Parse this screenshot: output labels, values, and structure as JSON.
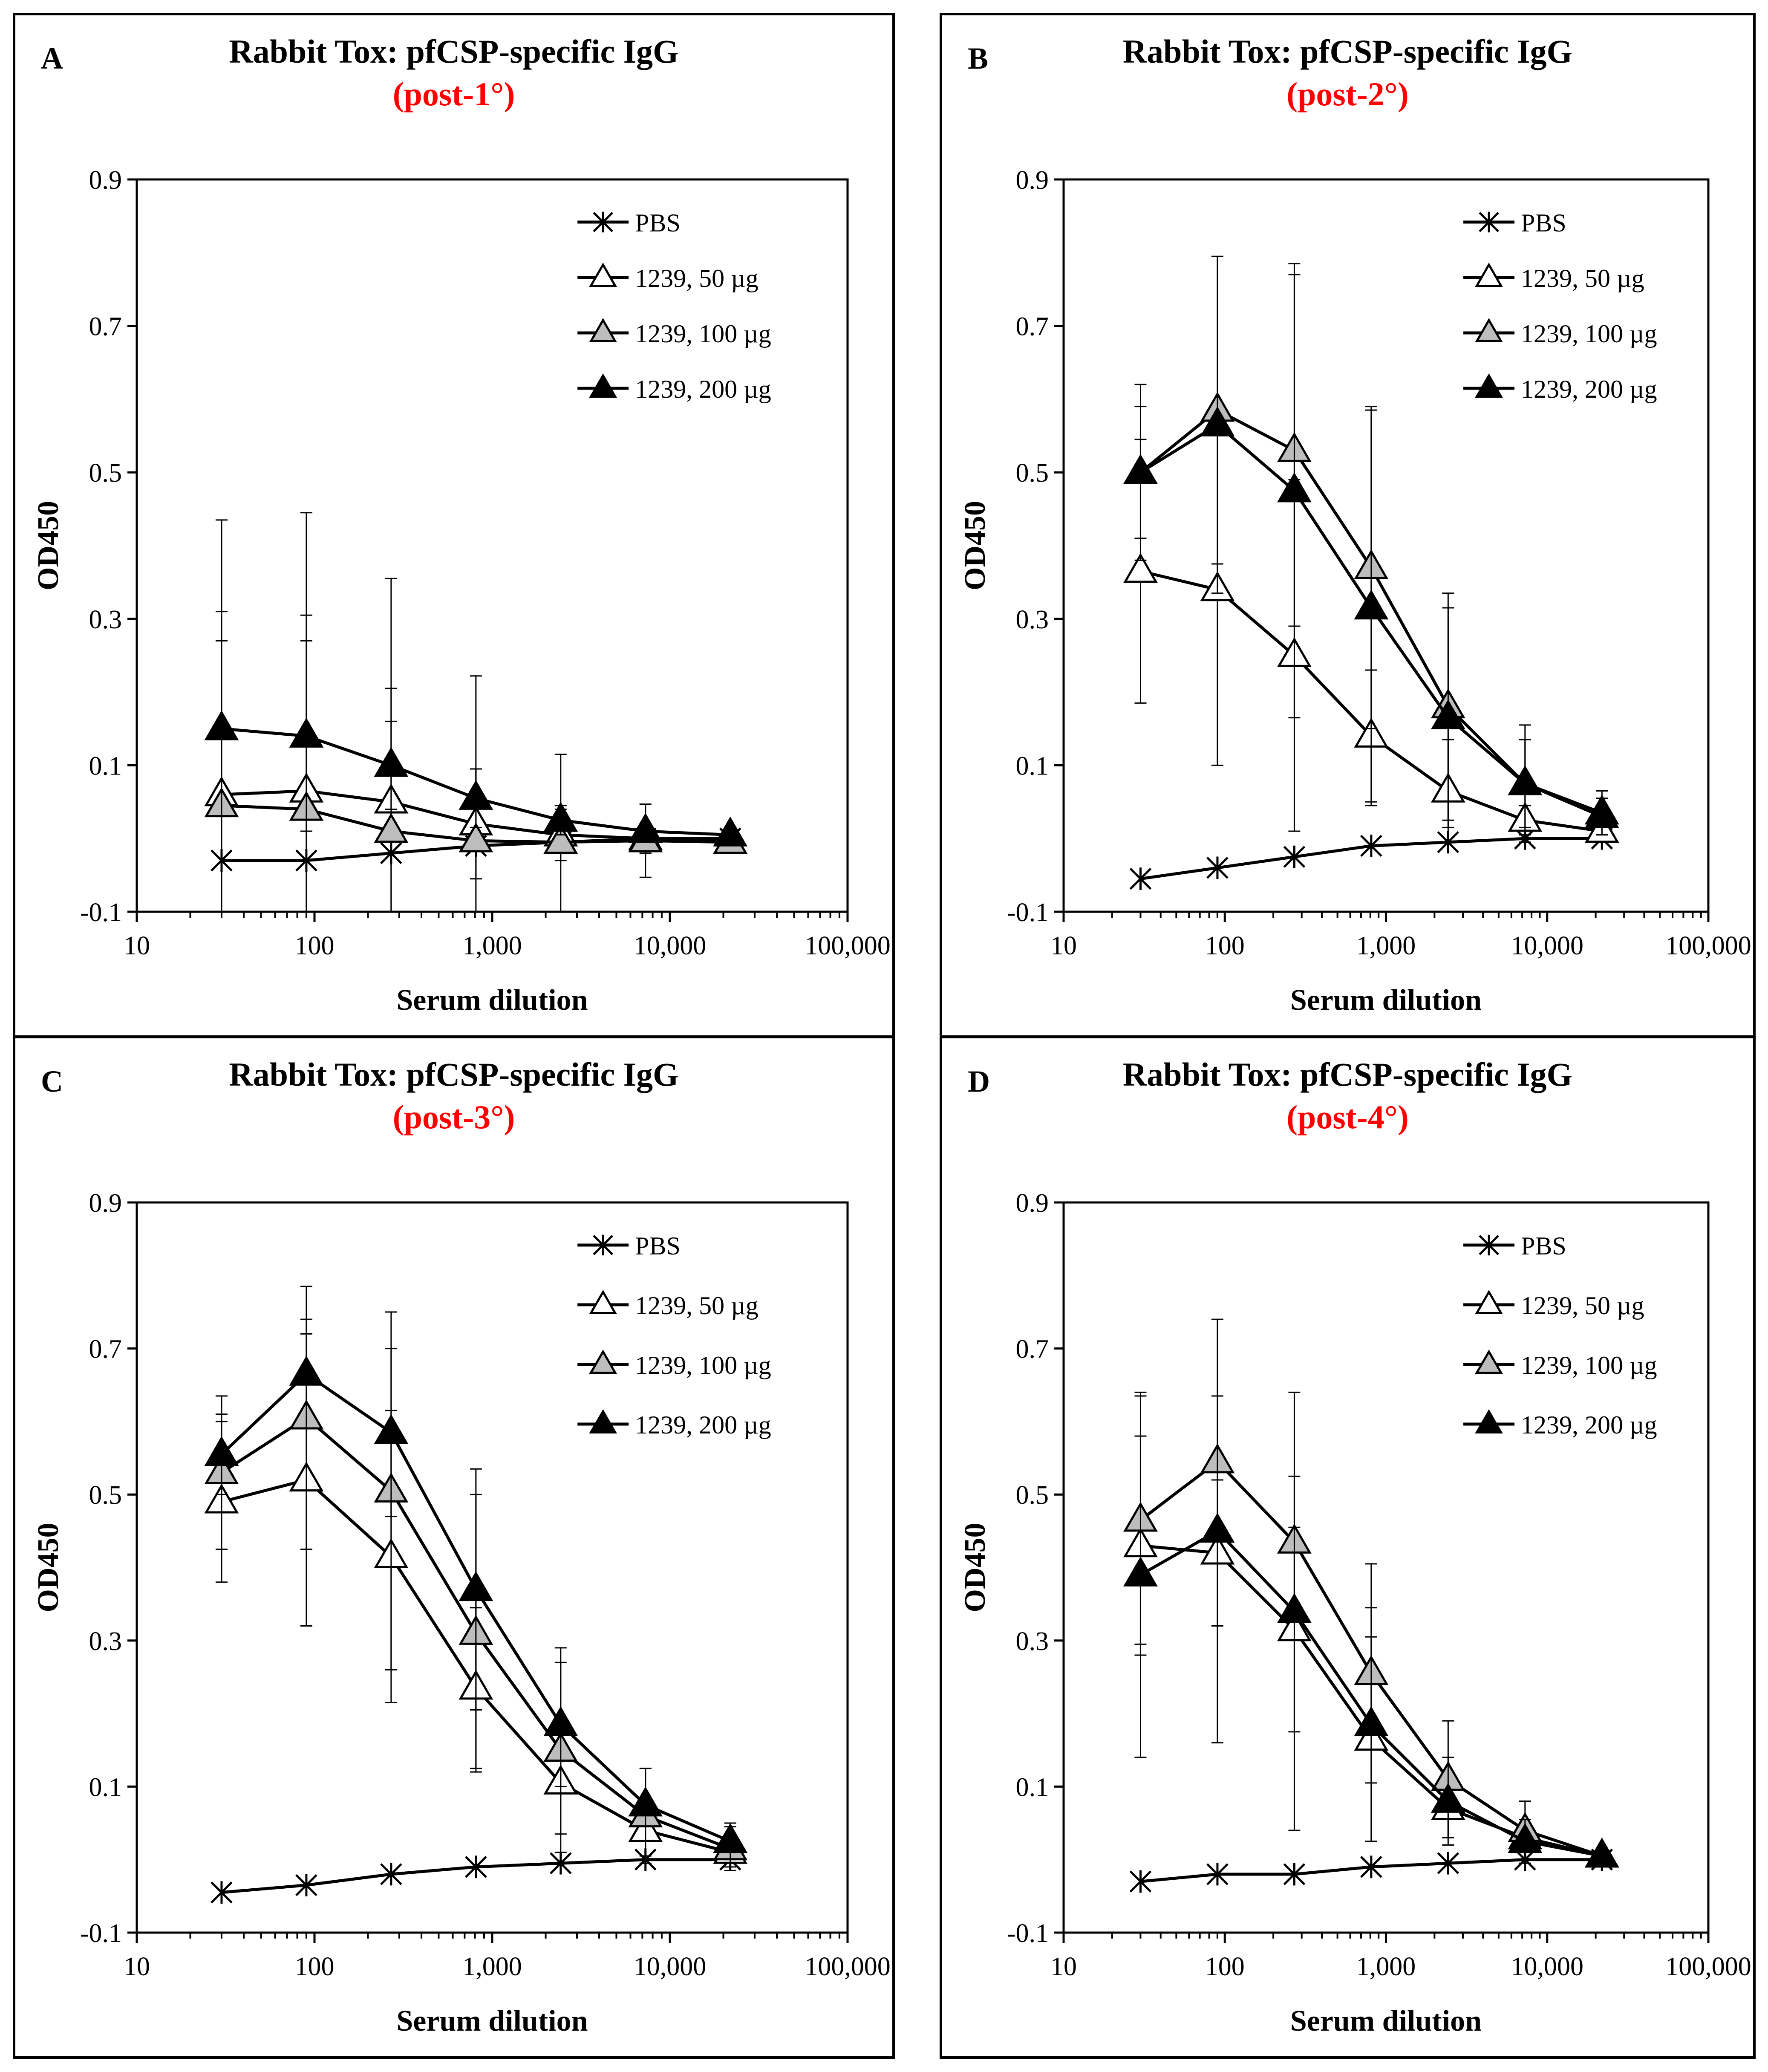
{
  "figure": {
    "colors": {
      "subtitle": "#ff0000",
      "axis": "#000000",
      "pbs_marker": "#000000",
      "dose50_fill": "#ffffff",
      "dose100_fill": "#bdbdbd",
      "dose200_fill": "#000000"
    }
  },
  "chart_data": [
    {
      "type": "line",
      "panel_label": "A",
      "title": "Rabbit Tox: pfCSP-specific IgG",
      "subtitle": "(post-1°)",
      "xlabel": "Serum dilution",
      "ylabel": "OD450",
      "xscale": "log",
      "xlim": [
        10,
        100000
      ],
      "ylim": [
        -0.1,
        0.9
      ],
      "x_ticks": [
        "10",
        "100",
        "1,000",
        "10,000",
        "100,000"
      ],
      "y_ticks": [
        "-0.1",
        "0.1",
        "0.3",
        "0.5",
        "0.7",
        "0.9"
      ],
      "legend_position": "top-right",
      "x": [
        30,
        90,
        270,
        810,
        2430,
        7290,
        21870
      ],
      "series": [
        {
          "name": "PBS",
          "marker": "asterisk",
          "values": [
            -0.03,
            -0.03,
            -0.02,
            -0.01,
            -0.005,
            0.0,
            0.0
          ],
          "errors": [
            0,
            0,
            0,
            0,
            0,
            0,
            0
          ]
        },
        {
          "name": "1239, 50 µg",
          "marker": "triangle-open",
          "values": [
            0.06,
            0.065,
            0.05,
            0.02,
            0.005,
            0.0,
            -0.005
          ],
          "errors": [
            0.25,
            0.24,
            0.155,
            0.075,
            0.035,
            0.02,
            0.01
          ]
        },
        {
          "name": "1239, 100 µg",
          "marker": "triangle-gray",
          "values": [
            0.045,
            0.04,
            0.01,
            -0.003,
            -0.005,
            -0.003,
            -0.005
          ],
          "errors": [
            0.39,
            0.405,
            0.345,
            0.225,
            0.12,
            0.05,
            0.01
          ]
        },
        {
          "name": "1239, 200 µg",
          "marker": "triangle-filled",
          "values": [
            0.15,
            0.14,
            0.1,
            0.055,
            0.025,
            0.01,
            0.005
          ],
          "errors": [
            0.12,
            0.13,
            0.06,
            0.04,
            0.02,
            0.01,
            0.01
          ]
        }
      ]
    },
    {
      "type": "line",
      "panel_label": "B",
      "title": "Rabbit Tox: pfCSP-specific IgG",
      "subtitle": "(post-2°)",
      "xlabel": "Serum dilution",
      "ylabel": "OD450",
      "xscale": "log",
      "xlim": [
        10,
        100000
      ],
      "ylim": [
        -0.1,
        0.9
      ],
      "x_ticks": [
        "10",
        "100",
        "1,000",
        "10,000",
        "100,000"
      ],
      "y_ticks": [
        "-0.1",
        "0.1",
        "0.3",
        "0.5",
        "0.7",
        "0.9"
      ],
      "legend_position": "top-right",
      "x": [
        30,
        90,
        270,
        810,
        2430,
        7290,
        21870
      ],
      "series": [
        {
          "name": "PBS",
          "marker": "asterisk",
          "values": [
            -0.055,
            -0.04,
            -0.025,
            -0.01,
            -0.005,
            0.0,
            0.0
          ],
          "errors": [
            0,
            0,
            0,
            0,
            0,
            0,
            0
          ]
        },
        {
          "name": "1239, 50 µg",
          "marker": "triangle-open",
          "values": [
            0.365,
            0.34,
            0.25,
            0.14,
            0.065,
            0.025,
            0.01
          ],
          "errors": [
            0.18,
            0.24,
            0.24,
            0.09,
            0.07,
            0.02,
            0.01
          ]
        },
        {
          "name": "1239, 100 µg",
          "marker": "triangle-gray",
          "values": [
            0.5,
            0.585,
            0.53,
            0.37,
            0.18,
            0.075,
            0.035
          ],
          "errors": [
            0.09,
            0.21,
            0.24,
            0.22,
            0.155,
            0.08,
            0.03
          ]
        },
        {
          "name": "1239, 200 µg",
          "marker": "triangle-filled",
          "values": [
            0.5,
            0.565,
            0.475,
            0.315,
            0.165,
            0.075,
            0.03
          ],
          "errors": [
            0.12,
            0.23,
            0.31,
            0.27,
            0.15,
            0.06,
            0.025
          ]
        }
      ]
    },
    {
      "type": "line",
      "panel_label": "C",
      "title": "Rabbit Tox: pfCSP-specific IgG",
      "subtitle": "(post-3°)",
      "xlabel": "Serum dilution",
      "ylabel": "OD450",
      "xscale": "log",
      "xlim": [
        10,
        100000
      ],
      "ylim": [
        -0.1,
        0.9
      ],
      "x_ticks": [
        "10",
        "100",
        "1,000",
        "10,000",
        "100,000"
      ],
      "y_ticks": [
        "-0.1",
        "0.1",
        "0.3",
        "0.5",
        "0.7",
        "0.9"
      ],
      "legend_position": "top-right",
      "x": [
        30,
        90,
        270,
        810,
        2430,
        7290,
        21870
      ],
      "series": [
        {
          "name": "PBS",
          "marker": "asterisk",
          "values": [
            -0.045,
            -0.035,
            -0.02,
            -0.01,
            -0.005,
            0.0,
            0.0
          ],
          "errors": [
            0,
            0,
            0,
            0,
            0,
            0,
            0
          ]
        },
        {
          "name": "1239, 50 µg",
          "marker": "triangle-open",
          "values": [
            0.49,
            0.52,
            0.415,
            0.235,
            0.105,
            0.04,
            0.01
          ],
          "errors": [
            0.11,
            0.2,
            0.2,
            0.11,
            0.07,
            0.035,
            0.02
          ]
        },
        {
          "name": "1239, 100 µg",
          "marker": "triangle-gray",
          "values": [
            0.53,
            0.605,
            0.505,
            0.31,
            0.15,
            0.06,
            0.015
          ],
          "errors": [
            0.105,
            0.18,
            0.245,
            0.19,
            0.14,
            0.065,
            0.03
          ]
        },
        {
          "name": "1239, 200 µg",
          "marker": "triangle-filled",
          "values": [
            0.555,
            0.665,
            0.585,
            0.37,
            0.185,
            0.075,
            0.025
          ],
          "errors": [
            0.055,
            0.075,
            0.115,
            0.165,
            0.085,
            0.05,
            0.025
          ]
        }
      ]
    },
    {
      "type": "line",
      "panel_label": "D",
      "title": "Rabbit Tox: pfCSP-specific IgG",
      "subtitle": "(post-4°)",
      "xlabel": "Serum dilution",
      "ylabel": "OD450",
      "xscale": "log",
      "xlim": [
        10,
        100000
      ],
      "ylim": [
        -0.1,
        0.9
      ],
      "x_ticks": [
        "10",
        "100",
        "1,000",
        "10,000",
        "100,000"
      ],
      "y_ticks": [
        "-0.1",
        "0.1",
        "0.3",
        "0.5",
        "0.7",
        "0.9"
      ],
      "legend_position": "top-right",
      "x": [
        30,
        90,
        270,
        810,
        2430,
        7290,
        21870
      ],
      "series": [
        {
          "name": "PBS",
          "marker": "asterisk",
          "values": [
            -0.03,
            -0.02,
            -0.02,
            -0.01,
            -0.005,
            0.0,
            0.0
          ],
          "errors": [
            0,
            0,
            0,
            0,
            0,
            0,
            0
          ]
        },
        {
          "name": "1239, 50 µg",
          "marker": "triangle-open",
          "values": [
            0.43,
            0.42,
            0.315,
            0.165,
            0.07,
            0.03,
            0.005
          ],
          "errors": [
            0.15,
            0.1,
            0.14,
            0.14,
            0.04,
            0.02,
            0.01
          ]
        },
        {
          "name": "1239, 100 µg",
          "marker": "triangle-gray",
          "values": [
            0.465,
            0.545,
            0.435,
            0.255,
            0.11,
            0.04,
            0.005
          ],
          "errors": [
            0.17,
            0.09,
            0.09,
            0.15,
            0.08,
            0.04,
            0.01
          ]
        },
        {
          "name": "1239, 200 µg",
          "marker": "triangle-filled",
          "values": [
            0.39,
            0.45,
            0.34,
            0.185,
            0.08,
            0.025,
            0.005
          ],
          "errors": [
            0.25,
            0.29,
            0.3,
            0.16,
            0.06,
            0.03,
            0.01
          ]
        }
      ]
    }
  ]
}
